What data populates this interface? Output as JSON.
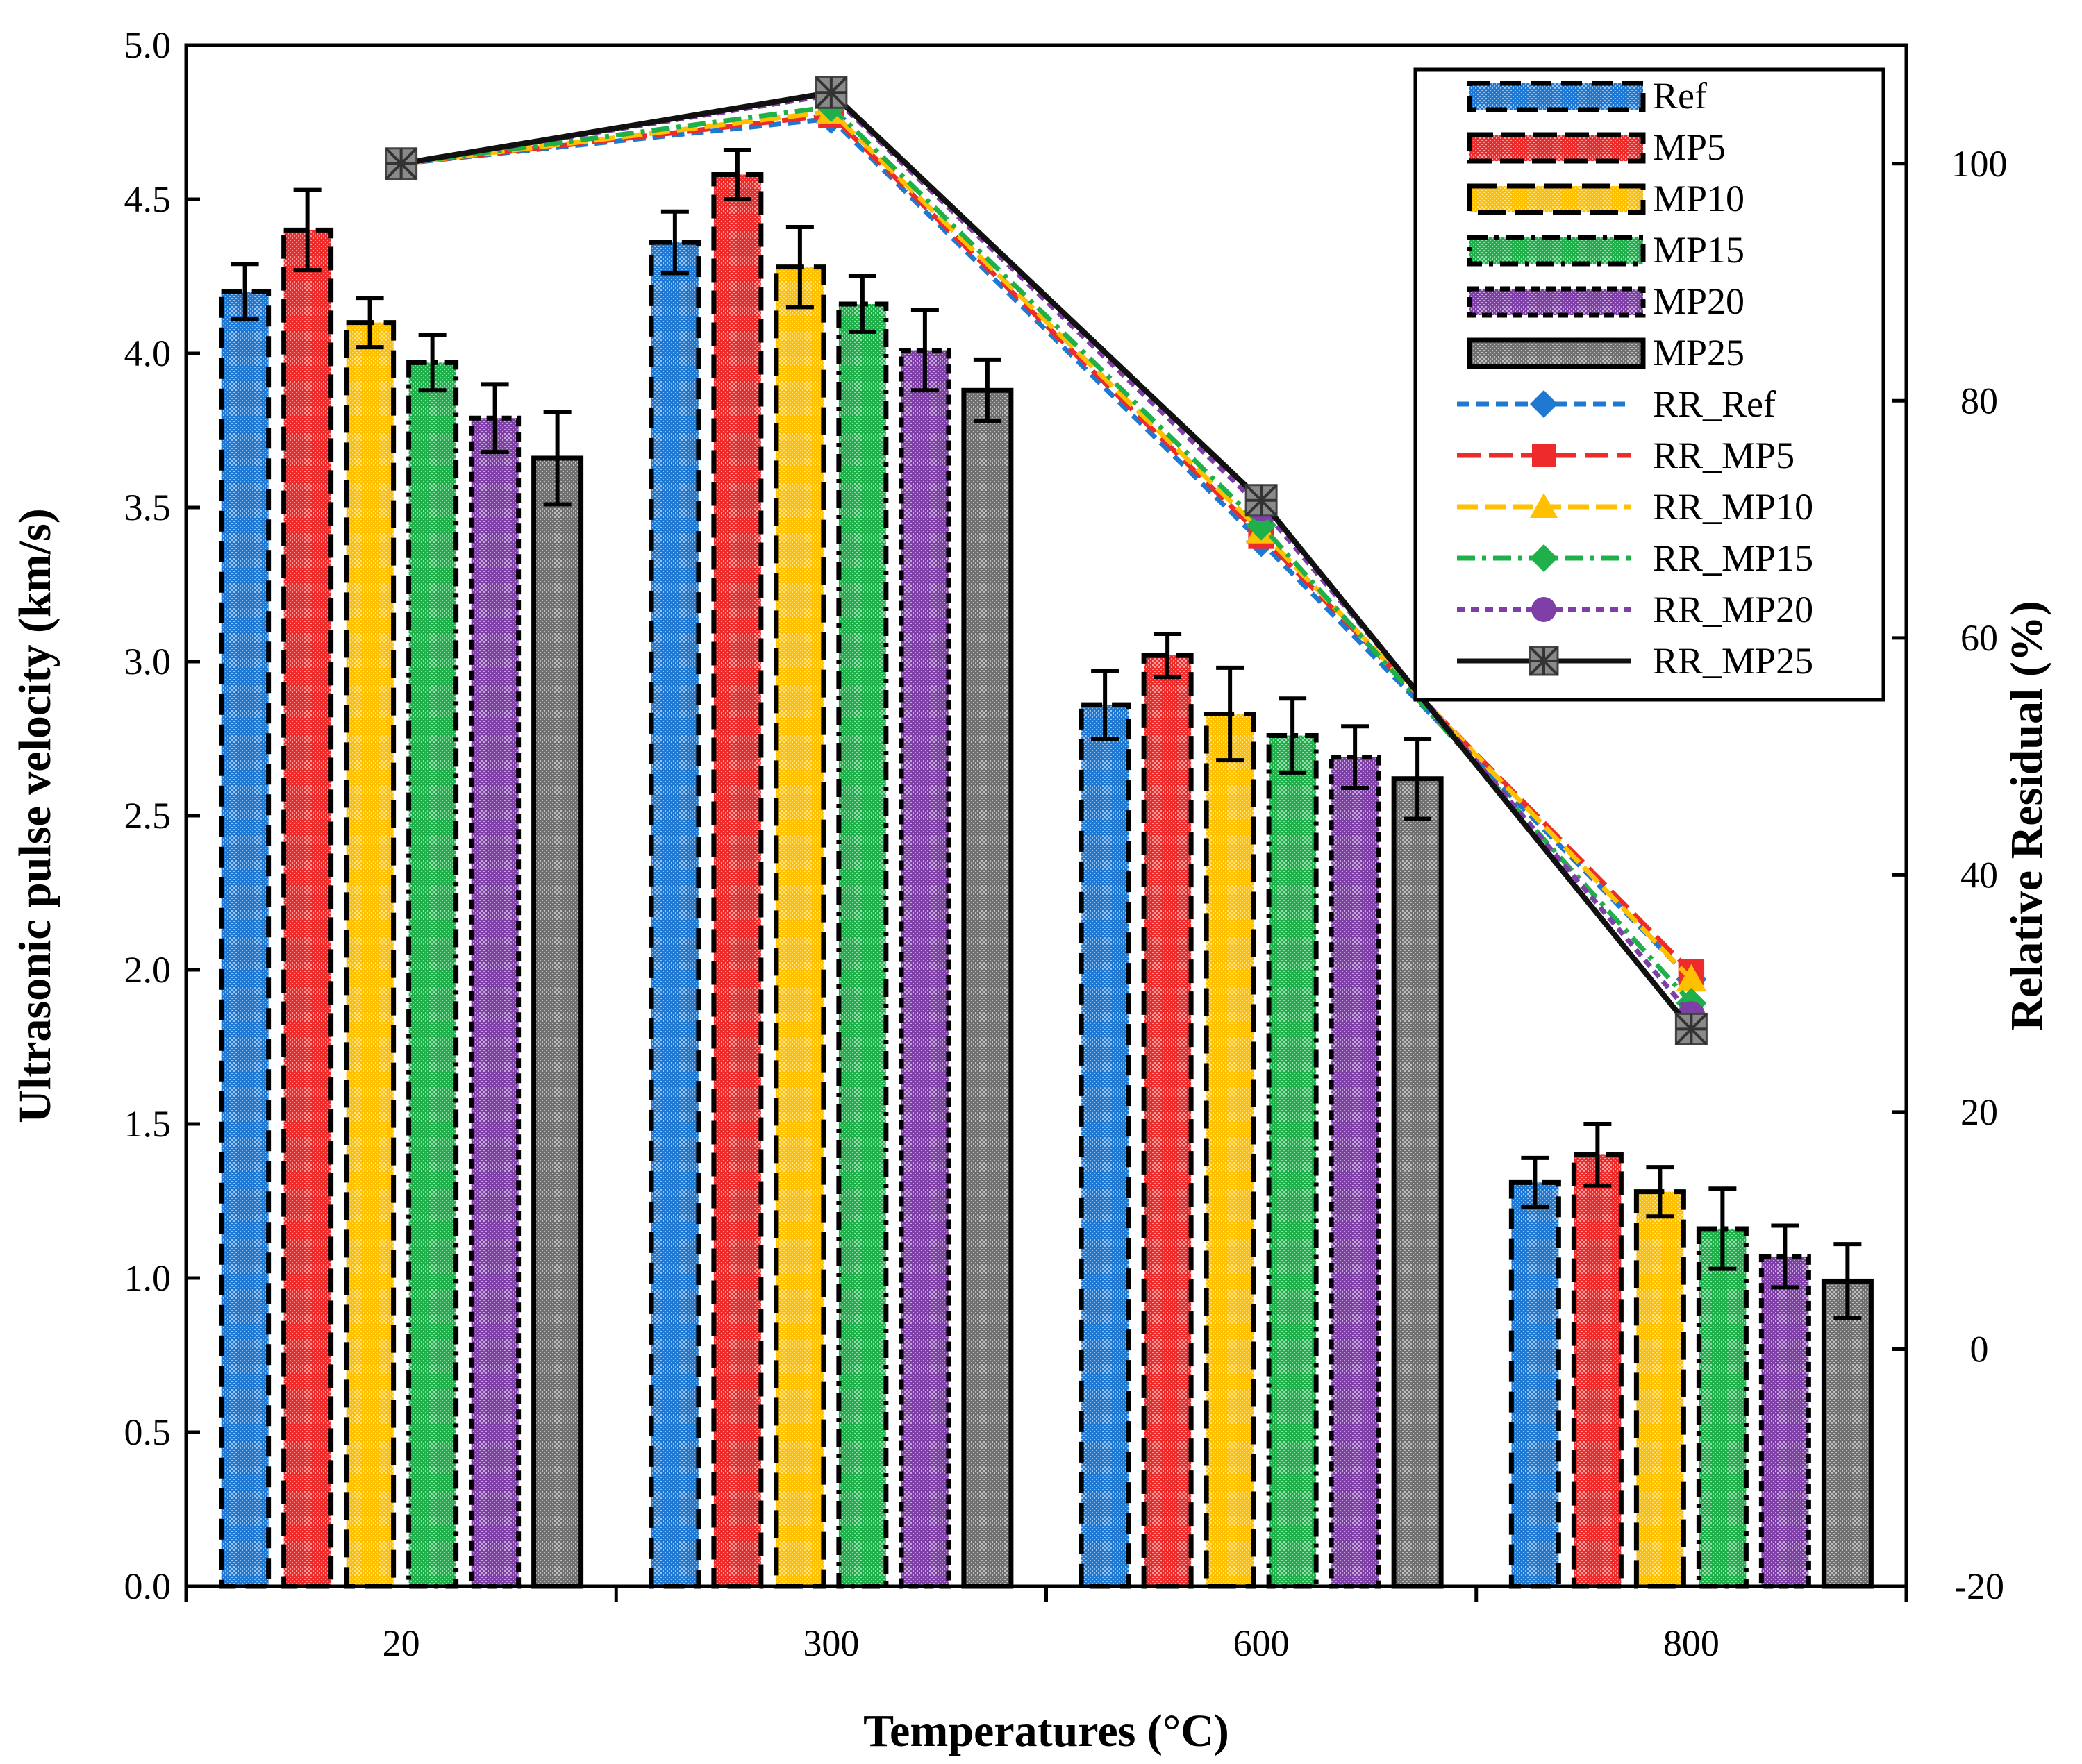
{
  "chart_data": {
    "type": "bar",
    "title": "",
    "xlabel": "Temperatures (°C)",
    "ylabel": "Ultrasonic pulse velocity (km/s)",
    "y2label": "Relative Residual (%)",
    "categories": [
      "20",
      "300",
      "600",
      "800"
    ],
    "ylim": [
      0,
      5
    ],
    "yticks": [
      "0.0",
      "0.5",
      "1.0",
      "1.5",
      "2.0",
      "2.5",
      "3.0",
      "3.5",
      "4.0",
      "4.5",
      "5.0"
    ],
    "y2lim": [
      -20,
      110
    ],
    "y2ticks": [
      "-20",
      "0",
      "20",
      "40",
      "60",
      "80",
      "100"
    ],
    "legend_position": "top-right",
    "series": [
      {
        "name": "Ref",
        "color": "#1f78d1",
        "values": [
          4.2,
          4.36,
          2.86,
          1.31
        ],
        "errors": [
          0.09,
          0.1,
          0.11,
          0.08
        ]
      },
      {
        "name": "MP5",
        "color": "#ee2b2b",
        "values": [
          4.4,
          4.58,
          3.02,
          1.4
        ],
        "errors": [
          0.13,
          0.08,
          0.07,
          0.1
        ]
      },
      {
        "name": "MP10",
        "color": "#ffc000",
        "values": [
          4.1,
          4.28,
          2.83,
          1.28
        ],
        "errors": [
          0.08,
          0.13,
          0.15,
          0.08
        ]
      },
      {
        "name": "MP15",
        "color": "#20b04b",
        "values": [
          3.97,
          4.16,
          2.76,
          1.16
        ],
        "errors": [
          0.09,
          0.09,
          0.12,
          0.13
        ]
      },
      {
        "name": "MP20",
        "color": "#7e3fa6",
        "values": [
          3.79,
          4.01,
          2.69,
          1.07
        ],
        "errors": [
          0.11,
          0.13,
          0.1,
          0.1
        ]
      },
      {
        "name": "MP25",
        "color": "#707070",
        "values": [
          3.66,
          3.88,
          2.62,
          0.99
        ],
        "errors": [
          0.15,
          0.1,
          0.13,
          0.12
        ]
      }
    ],
    "line_series": [
      {
        "name": "RR_Ref",
        "color": "#1f78d1",
        "marker": "diamond",
        "dash": "18,10",
        "values": [
          100,
          103.8,
          68.1,
          31.2
        ]
      },
      {
        "name": "RR_MP5",
        "color": "#ee2b2b",
        "marker": "square",
        "dash": "34,12",
        "values": [
          100,
          104.1,
          68.6,
          31.8
        ]
      },
      {
        "name": "RR_MP10",
        "color": "#ffc000",
        "marker": "triangle",
        "dash": "30,10",
        "values": [
          100,
          104.4,
          69.0,
          31.2
        ]
      },
      {
        "name": "RR_MP15",
        "color": "#20b04b",
        "marker": "diamond",
        "dash": "26,10,6,10",
        "values": [
          100,
          104.8,
          69.5,
          29.2
        ]
      },
      {
        "name": "RR_MP20",
        "color": "#7e3fa6",
        "marker": "circle",
        "dash": "12,8",
        "values": [
          100,
          105.8,
          71.0,
          28.2
        ]
      },
      {
        "name": "RR_MP25",
        "color": "#111111",
        "marker": "star",
        "dash": "",
        "values": [
          100,
          106.0,
          71.6,
          27.0
        ]
      }
    ]
  }
}
